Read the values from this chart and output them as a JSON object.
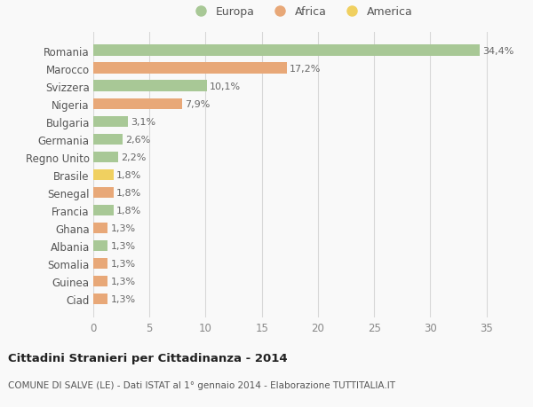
{
  "countries": [
    "Romania",
    "Marocco",
    "Svizzera",
    "Nigeria",
    "Bulgaria",
    "Germania",
    "Regno Unito",
    "Brasile",
    "Senegal",
    "Francia",
    "Ghana",
    "Albania",
    "Somalia",
    "Guinea",
    "Ciad"
  ],
  "values": [
    34.4,
    17.2,
    10.1,
    7.9,
    3.1,
    2.6,
    2.2,
    1.8,
    1.8,
    1.8,
    1.3,
    1.3,
    1.3,
    1.3,
    1.3
  ],
  "labels": [
    "34,4%",
    "17,2%",
    "10,1%",
    "7,9%",
    "3,1%",
    "2,6%",
    "2,2%",
    "1,8%",
    "1,8%",
    "1,8%",
    "1,3%",
    "1,3%",
    "1,3%",
    "1,3%",
    "1,3%"
  ],
  "continents": [
    "Europa",
    "Africa",
    "Europa",
    "Africa",
    "Europa",
    "Europa",
    "Europa",
    "America",
    "Africa",
    "Europa",
    "Africa",
    "Europa",
    "Africa",
    "Africa",
    "Africa"
  ],
  "colors": {
    "Europa": "#a8c896",
    "Africa": "#e8a878",
    "America": "#f0d060"
  },
  "title": "Cittadini Stranieri per Cittadinanza - 2014",
  "subtitle": "COMUNE DI SALVE (LE) - Dati ISTAT al 1° gennaio 2014 - Elaborazione TUTTITALIA.IT",
  "xlim": [
    0,
    37
  ],
  "xticks": [
    0,
    5,
    10,
    15,
    20,
    25,
    30,
    35
  ],
  "background_color": "#f9f9f9",
  "grid_color": "#d8d8d8",
  "bar_height": 0.62,
  "label_fontsize": 8,
  "ytick_fontsize": 8.5,
  "xtick_fontsize": 8.5
}
